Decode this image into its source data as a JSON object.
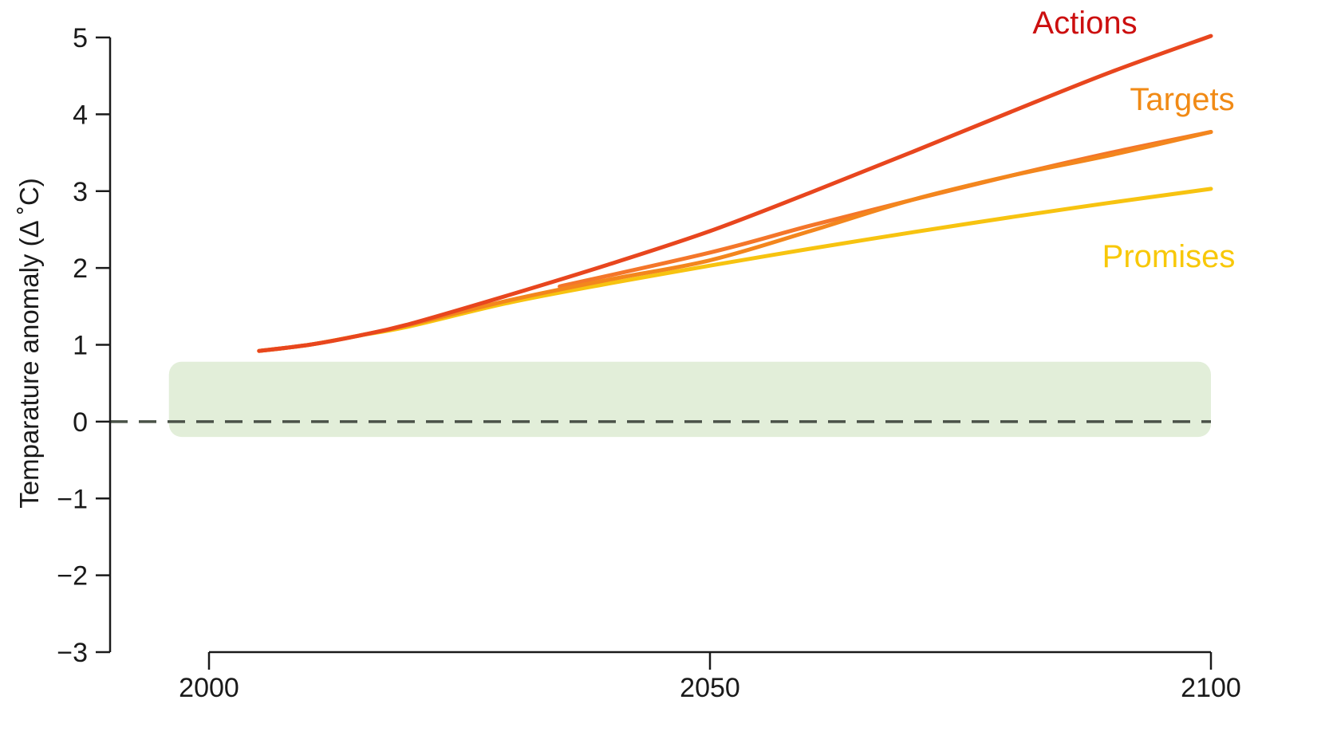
{
  "chart_data": {
    "type": "line",
    "title": "",
    "xlabel": "",
    "ylabel": "Temparature anomaly (Δ ˚C)",
    "xlim": [
      2000,
      2100
    ],
    "ylim": [
      -3,
      5
    ],
    "x_ticks": [
      "2000",
      "2050",
      "2100"
    ],
    "y_ticks": [
      "5",
      "4",
      "3",
      "2",
      "1",
      "0",
      "−1",
      "−2",
      "−3"
    ],
    "baseline": {
      "y": 0,
      "style": "dashed",
      "color": "#4a5248"
    },
    "band": {
      "y_range": [
        -0.2,
        0.78
      ],
      "x_range": [
        1996,
        2100
      ],
      "color": "#e2eed9"
    },
    "series": [
      {
        "name": "Actions",
        "color": "#e8461e",
        "label_color": "#cc0f0f",
        "x": [
          2005,
          2010,
          2015,
          2020,
          2030,
          2040,
          2050,
          2060,
          2070,
          2080,
          2090,
          2100
        ],
        "y": [
          0.92,
          1.0,
          1.12,
          1.27,
          1.65,
          2.05,
          2.48,
          2.98,
          3.5,
          4.03,
          4.55,
          5.02
        ]
      },
      {
        "name": "Targets",
        "color": "#f3861d",
        "label_color": "#f18a15",
        "x": [
          2005,
          2010,
          2015,
          2020,
          2030,
          2040,
          2050,
          2060,
          2070,
          2080,
          2090,
          2100
        ],
        "y": [
          0.92,
          1.0,
          1.12,
          1.26,
          1.58,
          1.85,
          2.1,
          2.48,
          2.88,
          3.2,
          3.47,
          3.77
        ]
      },
      {
        "name": "",
        "color": "#f4762a",
        "x": [
          2035,
          2050,
          2060,
          2070,
          2080,
          2090,
          2100
        ],
        "y": [
          1.76,
          2.2,
          2.55,
          2.88,
          3.2,
          3.5,
          3.77
        ]
      },
      {
        "name": "Promises",
        "color": "#f7c310",
        "label_color": "#f8c808",
        "x": [
          2005,
          2010,
          2015,
          2020,
          2030,
          2040,
          2050,
          2060,
          2070,
          2080,
          2090,
          2100
        ],
        "y": [
          0.92,
          1.0,
          1.12,
          1.24,
          1.55,
          1.8,
          2.03,
          2.25,
          2.46,
          2.66,
          2.85,
          3.03
        ]
      }
    ],
    "annotations": [
      "Actions",
      "Targets",
      "Promises"
    ]
  }
}
